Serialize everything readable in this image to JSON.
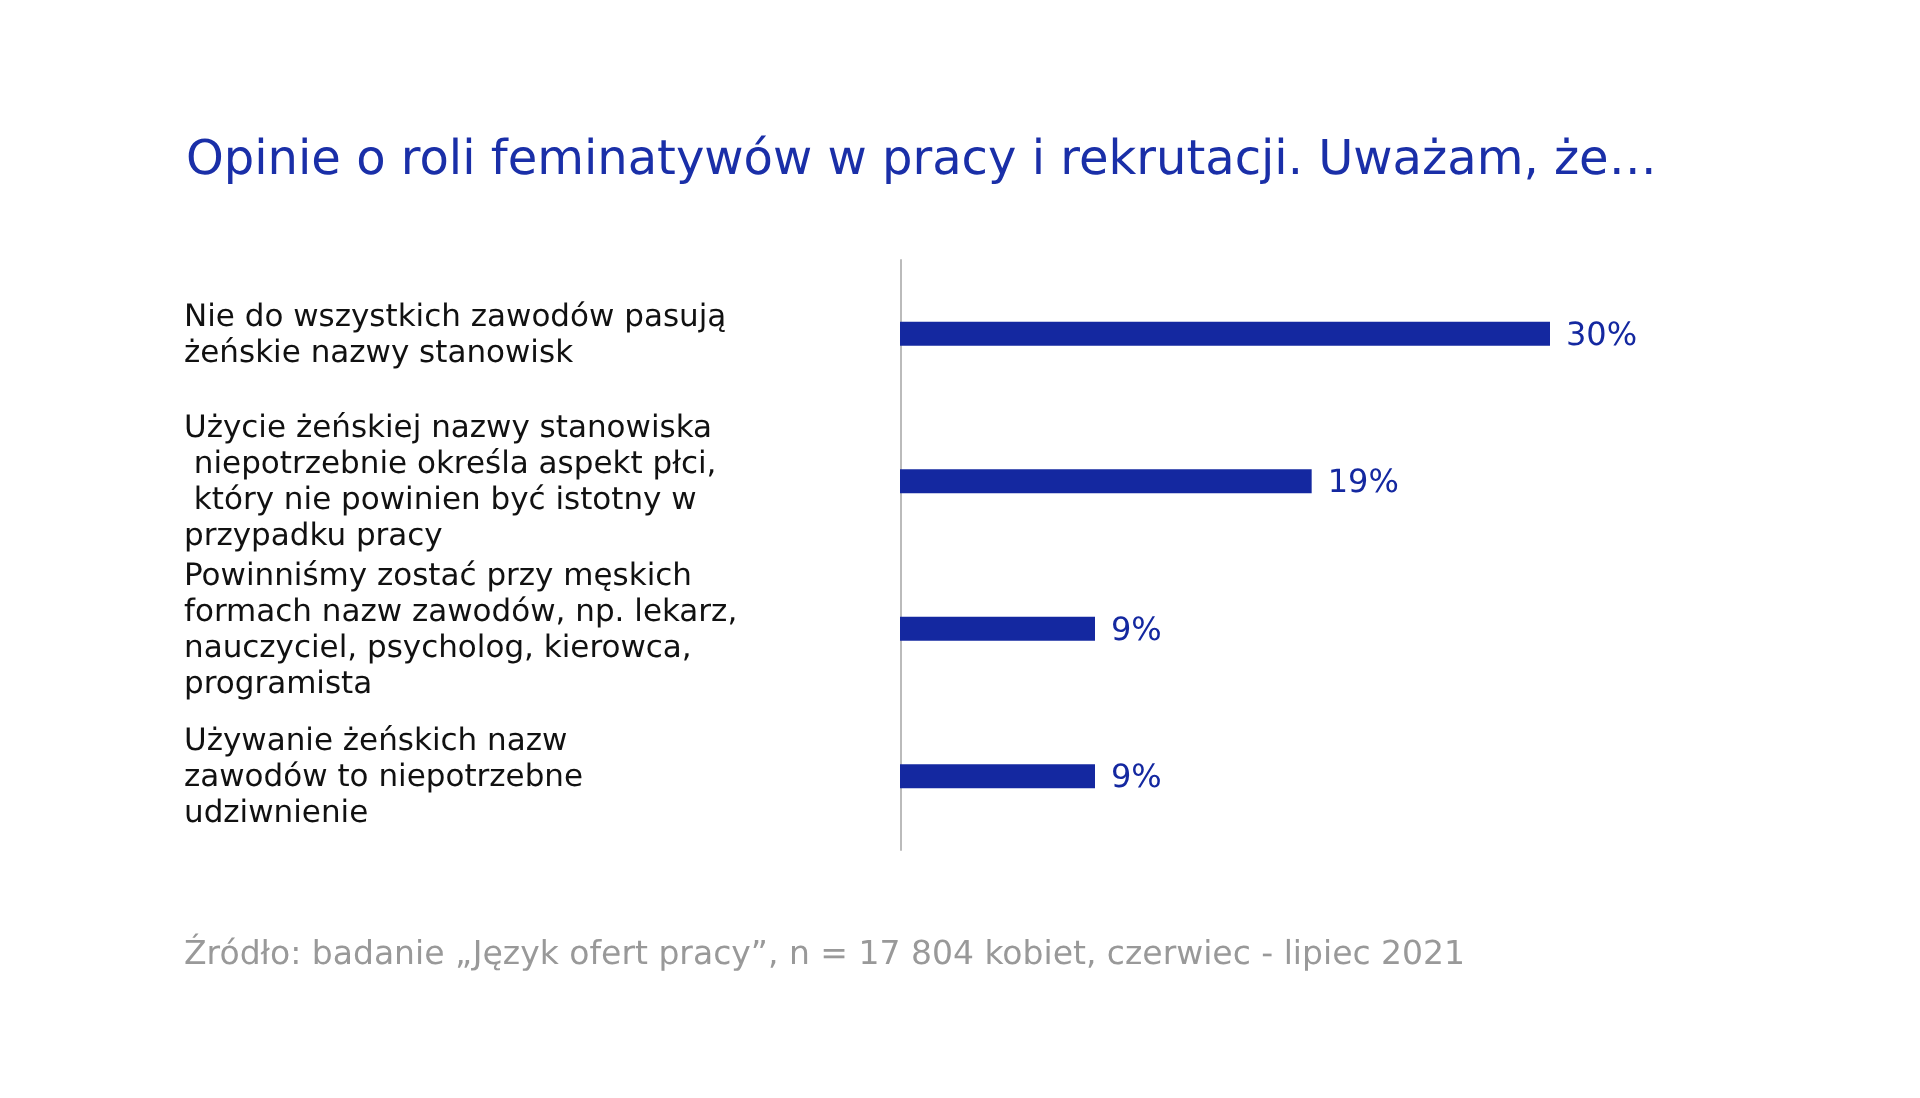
{
  "chart_data": {
    "type": "bar",
    "orientation": "horizontal",
    "title": "Opinie o roli feminatywów w pracy i rekrutacji. Uważam, że…",
    "categories": [
      "Nie do wszystkich zawodów pasują żeńskie nazwy stanowisk",
      "Użycie żeńskiej nazwy stanowiska niepotrzebnie określa aspekt płci, który nie powinien być istotny w przypadku pracy",
      "Powinniśmy zostać przy męskich formach nazw zawodów, np. lekarz, nauczyciel, psycholog, kierowca, programista",
      "Używanie żeńskich nazw zawodów to niepotrzebne udziwnienie"
    ],
    "values": [
      30,
      19,
      9,
      9
    ],
    "color": "#1428a0",
    "data_labels": true,
    "value_labels": [
      "30%",
      "19%",
      "9%",
      "9%"
    ],
    "annotations": [
      "Źródło: badanie „Język ofert pracy”, n = 17 804 kobiet, czerwiec - lipiec 2021"
    ]
  }
}
